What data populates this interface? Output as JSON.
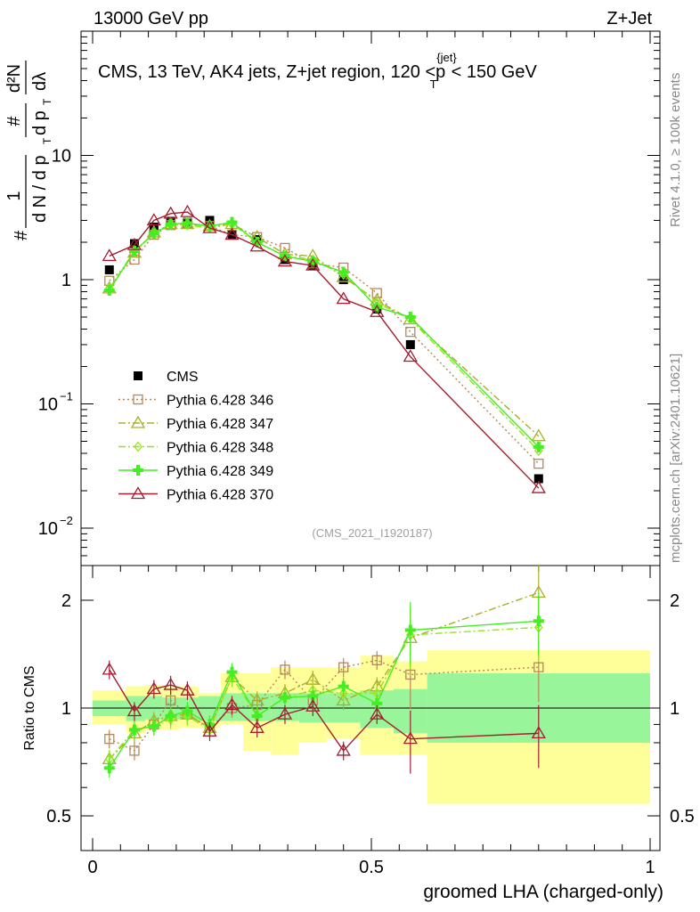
{
  "header": {
    "left_text": "13000 GeV pp",
    "right_text": "Z+Jet"
  },
  "side_labels": {
    "rivet": "Rivet 4.1.0, ≥ 100k events",
    "mcplots": "mcplots.cern.ch [arXiv:2401.10621]"
  },
  "chart_data": [
    {
      "type": "line",
      "panel": "main",
      "title_prefix": "CMS, 13 TeV, AK4 jets, Z+jet region, 120 <",
      "title_pt_sym": "p",
      "title_pt_sub": "T",
      "title_pt_sup": "{jet}",
      "title_suffix": "< 150 GeV",
      "watermark": "(CMS_2021_I1920187)",
      "ylabel_hash": "#",
      "ylabel_frac1_num": "1",
      "ylabel_frac1_den": "d N / d p",
      "ylabel_frac2_num": "#",
      "ylabel_frac2_den": "d p",
      "ylabel_frac3_num": "d²N",
      "ylabel_frac3_den": "dλ",
      "ylabel_sub_T": "T",
      "yscale": "log",
      "xlim": [
        0,
        1
      ],
      "ylim": [
        0.005,
        100
      ],
      "ytick_labels": [
        {
          "value": 0.01,
          "base": "10",
          "exp": "−2"
        },
        {
          "value": 0.1,
          "base": "10",
          "exp": "−1"
        },
        {
          "value": 1,
          "base": "1",
          "exp": ""
        },
        {
          "value": 10,
          "base": "10",
          "exp": ""
        }
      ],
      "x": [
        0.03,
        0.075,
        0.11,
        0.14,
        0.17,
        0.21,
        0.25,
        0.295,
        0.345,
        0.395,
        0.45,
        0.51,
        0.57,
        0.8
      ],
      "series": [
        {
          "name": "CMS",
          "values": [
            1.2,
            1.95,
            2.65,
            2.95,
            2.9,
            3.0,
            2.3,
            2.1,
            1.45,
            1.3,
            1.0,
            0.58,
            0.3,
            0.025
          ]
        },
        {
          "name": "Pythia 6.428 346",
          "values": [
            0.98,
            1.45,
            2.3,
            2.75,
            2.85,
            2.7,
            2.3,
            2.2,
            1.8,
            1.35,
            1.25,
            0.78,
            0.38,
            0.033
          ]
        },
        {
          "name": "Pythia 6.428 347",
          "values": [
            0.85,
            1.65,
            2.4,
            2.8,
            2.8,
            2.7,
            2.8,
            2.2,
            1.6,
            1.55,
            1.05,
            0.68,
            0.48,
            0.055
          ]
        },
        {
          "name": "Pythia 6.428 348",
          "values": [
            0.85,
            1.7,
            2.35,
            2.75,
            2.75,
            2.6,
            2.8,
            2.0,
            1.55,
            1.45,
            1.1,
            0.65,
            0.48,
            0.042
          ]
        },
        {
          "name": "Pythia 6.428 349",
          "values": [
            0.82,
            1.7,
            2.35,
            2.8,
            2.85,
            2.7,
            2.9,
            2.0,
            1.55,
            1.4,
            1.15,
            0.6,
            0.5,
            0.045
          ]
        },
        {
          "name": "Pythia 6.428 370",
          "values": [
            1.55,
            1.9,
            3.0,
            3.4,
            3.5,
            2.6,
            2.3,
            1.85,
            1.4,
            1.3,
            0.7,
            0.55,
            0.24,
            0.021
          ]
        }
      ]
    },
    {
      "type": "line",
      "panel": "ratio",
      "ylabel": "Ratio to CMS",
      "xlabel": "groomed LHA (charged-only)",
      "yscale": "log",
      "xlim": [
        0,
        1
      ],
      "ylim": [
        0.4,
        2.5
      ],
      "xtick_labels": [
        {
          "value": 0,
          "label": "0"
        },
        {
          "value": 0.5,
          "label": "0.5"
        },
        {
          "value": 1,
          "label": "1"
        }
      ],
      "ytick_labels": [
        {
          "value": 0.5,
          "label": "0.5"
        },
        {
          "value": 1,
          "label": "1"
        },
        {
          "value": 2,
          "label": "2"
        }
      ],
      "bands": {
        "edges": [
          0,
          0.06,
          0.095,
          0.125,
          0.155,
          0.19,
          0.23,
          0.27,
          0.32,
          0.37,
          0.42,
          0.48,
          0.54,
          0.6,
          1.0
        ],
        "inner_lo": [
          0.95,
          0.92,
          0.93,
          0.93,
          0.93,
          0.92,
          0.92,
          0.92,
          0.92,
          0.91,
          0.91,
          0.88,
          0.85,
          0.8
        ],
        "inner_hi": [
          1.05,
          1.08,
          1.08,
          1.07,
          1.07,
          1.08,
          1.1,
          1.1,
          1.1,
          1.1,
          1.1,
          1.12,
          1.13,
          1.25
        ],
        "outer_lo": [
          0.9,
          0.85,
          0.87,
          0.87,
          0.88,
          0.88,
          0.9,
          0.76,
          0.74,
          0.8,
          0.82,
          0.74,
          0.74,
          0.54
        ],
        "outer_hi": [
          1.12,
          1.15,
          1.16,
          1.15,
          1.15,
          1.1,
          1.25,
          1.25,
          1.3,
          1.3,
          1.3,
          1.4,
          1.35,
          1.45
        ]
      },
      "x": [
        0.03,
        0.075,
        0.11,
        0.14,
        0.17,
        0.21,
        0.25,
        0.295,
        0.345,
        0.395,
        0.45,
        0.51,
        0.57,
        0.8
      ],
      "series": [
        {
          "name": "Pythia 6.428 346",
          "values": [
            0.82,
            0.76,
            0.9,
            1.05,
            0.96,
            0.88,
            1.0,
            1.02,
            1.28,
            1.05,
            1.3,
            1.36,
            1.24,
            1.3
          ]
        },
        {
          "name": "Pythia 6.428 347",
          "values": [
            0.72,
            0.85,
            0.92,
            0.95,
            0.96,
            0.88,
            1.22,
            1.05,
            1.1,
            1.2,
            1.05,
            1.15,
            1.57,
            2.1
          ]
        },
        {
          "name": "Pythia 6.428 348",
          "values": [
            0.72,
            0.87,
            0.89,
            0.93,
            0.95,
            0.87,
            1.22,
            0.95,
            1.07,
            1.12,
            1.1,
            1.1,
            1.6,
            1.68
          ]
        },
        {
          "name": "Pythia 6.428 349",
          "values": [
            0.68,
            0.87,
            0.89,
            0.95,
            0.98,
            0.9,
            1.26,
            0.95,
            1.07,
            1.08,
            1.15,
            1.03,
            1.65,
            1.75
          ]
        },
        {
          "name": "Pythia 6.428 370",
          "values": [
            1.28,
            0.98,
            1.13,
            1.16,
            1.12,
            0.86,
            1.02,
            0.88,
            0.96,
            1.01,
            0.76,
            0.96,
            0.82,
            0.85
          ]
        }
      ]
    }
  ],
  "legend": {
    "items": [
      {
        "label": "CMS",
        "color": "#000000",
        "marker": "square-filled",
        "style": "none"
      },
      {
        "label": "Pythia 6.428 346",
        "color": "#b5875a",
        "marker": "square-open",
        "style": "dotted"
      },
      {
        "label": "Pythia 6.428 347",
        "color": "#a8b02a",
        "marker": "triangle-open",
        "style": "dashdot"
      },
      {
        "label": "Pythia 6.428 348",
        "color": "#96e619",
        "marker": "diamond-open",
        "style": "dashdot"
      },
      {
        "label": "Pythia 6.428 349",
        "color": "#44ee22",
        "marker": "cross-filled",
        "style": "solid"
      },
      {
        "label": "Pythia 6.428 370",
        "color": "#a51c30",
        "marker": "triangle-open",
        "style": "solid"
      }
    ]
  }
}
